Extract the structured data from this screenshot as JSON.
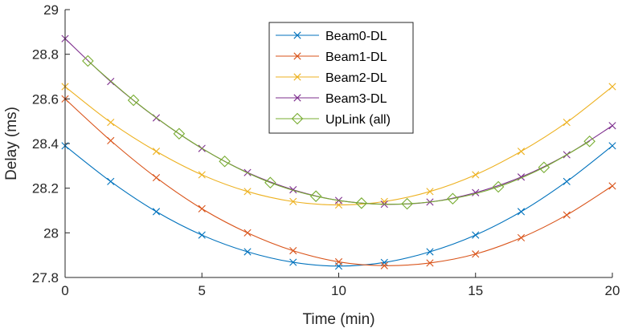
{
  "chart_data": {
    "type": "line",
    "title": "",
    "xlabel": "Time (min)",
    "ylabel": "Delay (ms)",
    "xlim": [
      0,
      20
    ],
    "ylim": [
      27.8,
      29
    ],
    "xticks": [
      0,
      5,
      10,
      15,
      20
    ],
    "yticks": [
      27.8,
      28,
      28.2,
      28.4,
      28.6,
      28.8,
      29
    ],
    "xtick_labels": [
      "0",
      "5",
      "10",
      "15",
      "20"
    ],
    "ytick_labels": [
      "27.8",
      "28",
      "28.2",
      "28.4",
      "28.6",
      "28.8",
      "29"
    ],
    "grid": false,
    "legend_position": "top-center",
    "series": [
      {
        "name": "Beam0-DL",
        "color": "#0072BD",
        "marker": "x",
        "x": [
          0,
          1.667,
          3.333,
          5,
          6.667,
          8.333,
          10,
          11.667,
          13.333,
          15,
          16.667,
          18.333,
          20
        ],
        "y": [
          28.39,
          28.23,
          28.095,
          27.99,
          27.915,
          27.868,
          27.851,
          27.867,
          27.915,
          27.99,
          28.095,
          28.23,
          28.39
        ]
      },
      {
        "name": "Beam1-DL",
        "color": "#D95319",
        "marker": "x",
        "x": [
          0,
          1.667,
          3.333,
          5,
          6.667,
          8.333,
          10,
          11.667,
          13.333,
          15,
          16.667,
          18.333,
          20
        ],
        "y": [
          28.6,
          28.413,
          28.247,
          28.108,
          28.0,
          27.92,
          27.87,
          27.853,
          27.865,
          27.905,
          27.978,
          28.08,
          28.21
        ]
      },
      {
        "name": "Beam2-DL",
        "color": "#EDB120",
        "marker": "x",
        "x": [
          0,
          1.667,
          3.333,
          5,
          6.667,
          8.333,
          10,
          11.667,
          13.333,
          15,
          16.667,
          18.333,
          20
        ],
        "y": [
          28.655,
          28.495,
          28.365,
          28.26,
          28.185,
          28.14,
          28.125,
          28.14,
          28.185,
          28.26,
          28.365,
          28.495,
          28.655
        ]
      },
      {
        "name": "Beam3-DL",
        "color": "#7E2F8E",
        "marker": "x",
        "x": [
          0,
          1.667,
          3.333,
          5,
          6.667,
          8.333,
          10,
          11.667,
          13.333,
          15,
          16.667,
          18.333,
          20
        ],
        "y": [
          28.87,
          28.678,
          28.515,
          28.378,
          28.27,
          28.193,
          28.145,
          28.128,
          28.138,
          28.18,
          28.25,
          28.35,
          28.48
        ]
      },
      {
        "name": "UpLink (all)",
        "color": "#77AC30",
        "marker": "diamond",
        "x": [
          0.833,
          2.5,
          4.167,
          5.833,
          7.5,
          9.167,
          10.833,
          12.5,
          14.167,
          15.833,
          17.5,
          19.167
        ],
        "y": [
          28.77,
          28.594,
          28.444,
          28.32,
          28.225,
          28.164,
          28.133,
          28.13,
          28.153,
          28.206,
          28.293,
          28.41
        ]
      }
    ]
  }
}
